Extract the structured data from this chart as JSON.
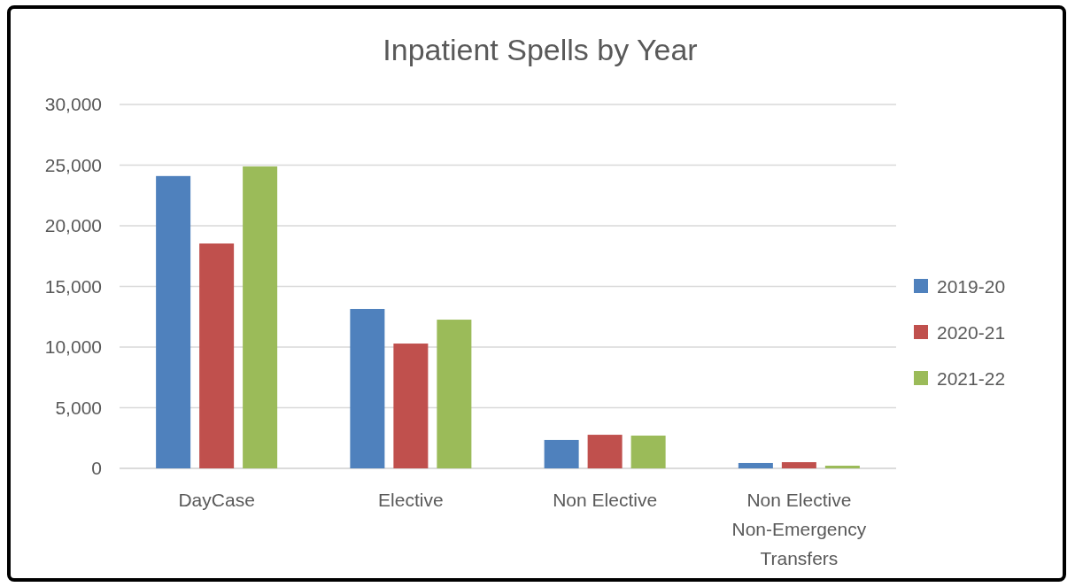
{
  "chart_data": {
    "type": "bar",
    "title": "Inpatient Spells by Year",
    "categories": [
      "DayCase",
      "Elective",
      "Non Elective",
      "Non Elective Non-Emergency Transfers"
    ],
    "series": [
      {
        "name": "2019-20",
        "color": "#4f81bd",
        "values": [
          24100,
          13140,
          2340,
          440
        ]
      },
      {
        "name": "2020-21",
        "color": "#c0504d",
        "values": [
          18540,
          10290,
          2770,
          510
        ]
      },
      {
        "name": "2021-22",
        "color": "#9bbb59",
        "values": [
          24890,
          12260,
          2700,
          220
        ]
      }
    ],
    "ylim": [
      0,
      30000
    ],
    "yticks": [
      {
        "value": 0,
        "label": "0"
      },
      {
        "value": 5000,
        "label": "5,000"
      },
      {
        "value": 10000,
        "label": "10,000"
      },
      {
        "value": 15000,
        "label": "15,000"
      },
      {
        "value": 20000,
        "label": "20,000"
      },
      {
        "value": 25000,
        "label": "25,000"
      },
      {
        "value": 30000,
        "label": "30,000"
      }
    ],
    "grid": "y",
    "legend": "right"
  }
}
